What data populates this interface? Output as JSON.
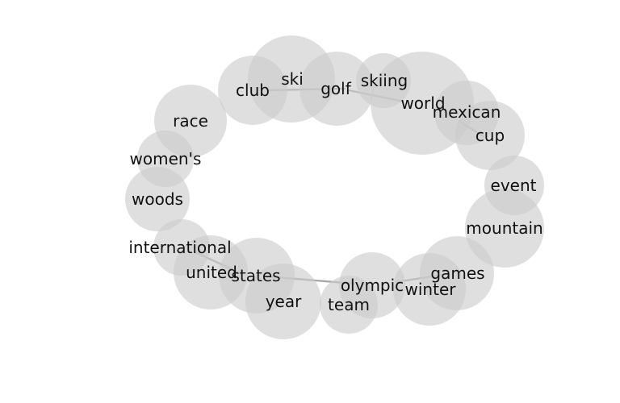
{
  "diagram": {
    "nodes": [
      {
        "id": "ski",
        "label": "ski"
      },
      {
        "id": "club",
        "label": "club"
      },
      {
        "id": "golf",
        "label": "golf"
      },
      {
        "id": "skiing",
        "label": "skiing"
      },
      {
        "id": "world",
        "label": "world"
      },
      {
        "id": "mexican",
        "label": "mexican"
      },
      {
        "id": "cup",
        "label": "cup"
      },
      {
        "id": "race",
        "label": "race"
      },
      {
        "id": "womens",
        "label": "women's"
      },
      {
        "id": "woods",
        "label": "woods"
      },
      {
        "id": "event",
        "label": "event"
      },
      {
        "id": "mountain",
        "label": "mountain"
      },
      {
        "id": "international",
        "label": "international"
      },
      {
        "id": "united",
        "label": "united"
      },
      {
        "id": "states",
        "label": "states"
      },
      {
        "id": "year",
        "label": "year"
      },
      {
        "id": "olympic",
        "label": "olympic"
      },
      {
        "id": "team",
        "label": "team"
      },
      {
        "id": "games",
        "label": "games"
      },
      {
        "id": "winter",
        "label": "winter"
      }
    ],
    "edges": [
      {
        "from": "club",
        "to": "golf"
      },
      {
        "from": "golf",
        "to": "world"
      },
      {
        "from": "mexican",
        "to": "cup"
      },
      {
        "from": "international",
        "to": "states"
      },
      {
        "from": "states",
        "to": "olympic"
      },
      {
        "from": "olympic",
        "to": "games"
      }
    ]
  }
}
